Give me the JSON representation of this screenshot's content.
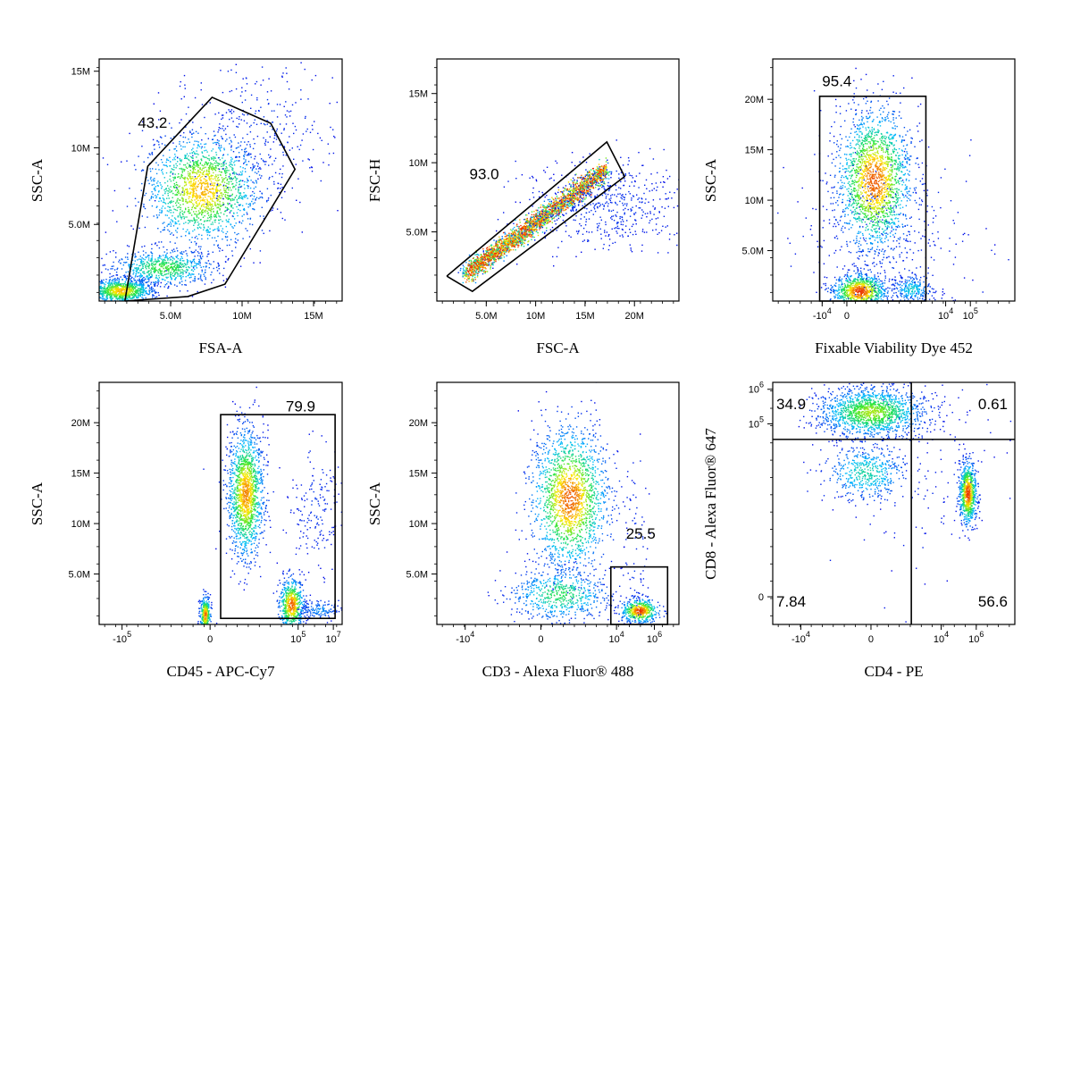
{
  "chart_data": [
    {
      "type": "scatter",
      "id": "p1",
      "xlabel": "FSA-A",
      "ylabel": "SSC-A",
      "xlim": [
        0,
        17000000
      ],
      "ylim": [
        0,
        15800000
      ],
      "xscale": "linear",
      "yscale": "linear",
      "xticks": [
        {
          "v": 5000000,
          "label": "5.0M"
        },
        {
          "v": 10000000,
          "label": "10M"
        },
        {
          "v": 15000000,
          "label": "15M"
        }
      ],
      "yticks": [
        {
          "v": 5000000,
          "label": "5.0M"
        },
        {
          "v": 10000000,
          "label": "10M"
        },
        {
          "v": 15000000,
          "label": "15M"
        }
      ],
      "clusters": [
        {
          "cx": 7200000,
          "cy": 7300000,
          "sx": 2000000,
          "sy": 1800000,
          "n": 1700,
          "peak": 0.8
        },
        {
          "cx": 4500000,
          "cy": 2200000,
          "sx": 1800000,
          "sy": 600000,
          "n": 700,
          "peak": 0.55
        },
        {
          "cx": 1500000,
          "cy": 700000,
          "sx": 1100000,
          "sy": 400000,
          "n": 900,
          "peak": 0.8
        },
        {
          "cx": 11000000,
          "cy": 11000000,
          "sx": 3000000,
          "sy": 2500000,
          "n": 350,
          "peak": 0.05
        }
      ],
      "gates": [
        {
          "kind": "polygon",
          "label": "43.2",
          "points": [
            [
              1800000,
              0
            ],
            [
              3400000,
              8800000
            ],
            [
              7900000,
              13300000
            ],
            [
              12000000,
              11600000
            ],
            [
              13700000,
              8600000
            ],
            [
              8800000,
              1100000
            ],
            [
              6200000,
              300000
            ],
            [
              1800000,
              0
            ]
          ],
          "label_at": [
            2700000,
            11300000
          ]
        }
      ]
    },
    {
      "type": "scatter",
      "id": "p2",
      "xlabel": "FSC-A",
      "ylabel": "FSC-H",
      "xlim": [
        0,
        24500000
      ],
      "ylim": [
        0,
        17500000
      ],
      "xscale": "linear",
      "yscale": "linear",
      "xticks": [
        {
          "v": 5000000,
          "label": "5.0M"
        },
        {
          "v": 10000000,
          "label": "10M"
        },
        {
          "v": 15000000,
          "label": "15M"
        },
        {
          "v": 20000000,
          "label": "20M"
        }
      ],
      "yticks": [
        {
          "v": 5000000,
          "label": "5.0M"
        },
        {
          "v": 10000000,
          "label": "10M"
        },
        {
          "v": 15000000,
          "label": "15M"
        }
      ],
      "clusters": [
        {
          "diag": true,
          "x0": 3000000,
          "y0": 2000000,
          "x1": 17000000,
          "y1": 9500000,
          "width": 700000,
          "n": 2600,
          "peak": 0.95
        },
        {
          "cx": 17000000,
          "cy": 7000000,
          "sx": 4000000,
          "sy": 1600000,
          "n": 600,
          "peak": 0.05
        }
      ],
      "gates": [
        {
          "kind": "polygon",
          "label": "93.0",
          "points": [
            [
              1000000,
              1800000
            ],
            [
              3600000,
              700000
            ],
            [
              19000000,
              9000000
            ],
            [
              17200000,
              11500000
            ],
            [
              1000000,
              1800000
            ]
          ],
          "label_at": [
            3300000,
            8800000
          ]
        }
      ]
    },
    {
      "type": "scatter",
      "id": "p3",
      "xlabel": "Fixable Viability Dye 452",
      "ylabel": "SSC-A",
      "xlim": [
        -3,
        6.8
      ],
      "ylim": [
        0,
        24000000
      ],
      "xscale": "biexp",
      "yscale": "linear",
      "xticks": [
        {
          "v": -1,
          "label": "-10^4"
        },
        {
          "v": 0,
          "label": "0"
        },
        {
          "v": 4,
          "label": "10^4"
        },
        {
          "v": 5,
          "label": "10^5"
        }
      ],
      "yticks": [
        {
          "v": 5000000,
          "label": "5.0M"
        },
        {
          "v": 10000000,
          "label": "10M"
        },
        {
          "v": 15000000,
          "label": "15M"
        },
        {
          "v": 20000000,
          "label": "20M"
        }
      ],
      "clusters": [
        {
          "cx": 1.1,
          "cy": 12000000,
          "sx": 0.75,
          "sy": 3500000,
          "n": 1900,
          "peak": 0.9
        },
        {
          "cx": 0.5,
          "cy": 1000000,
          "sx": 0.55,
          "sy": 900000,
          "n": 900,
          "peak": 0.95
        },
        {
          "cx": 2.6,
          "cy": 1200000,
          "sx": 0.4,
          "sy": 700000,
          "n": 250,
          "peak": 0.35
        },
        {
          "cx": 1.5,
          "cy": 6000000,
          "sx": 1.8,
          "sy": 5000000,
          "n": 400,
          "peak": 0.05
        }
      ],
      "gates": [
        {
          "kind": "rect",
          "label": "95.4",
          "x": [
            -1.1,
            3.2
          ],
          "y": [
            0,
            20300000
          ],
          "label_at": [
            -1.0,
            21300000
          ]
        }
      ]
    },
    {
      "type": "scatter",
      "id": "p4",
      "xlabel": "CD45 - APC-Cy7",
      "ylabel": "SSC-A",
      "xlim": [
        -6.3,
        7.5
      ],
      "ylim": [
        0,
        24000000
      ],
      "xscale": "biexp",
      "yscale": "linear",
      "xticks": [
        {
          "v": -5,
          "label": "-10^5"
        },
        {
          "v": 0,
          "label": "0"
        },
        {
          "v": 5,
          "label": "10^5"
        },
        {
          "v": 7,
          "label": "10^7"
        }
      ],
      "yticks": [
        {
          "v": 5000000,
          "label": "5.0M"
        },
        {
          "v": 10000000,
          "label": "10M"
        },
        {
          "v": 15000000,
          "label": "15M"
        },
        {
          "v": 20000000,
          "label": "20M"
        }
      ],
      "clusters": [
        {
          "cx": 2.0,
          "cy": 13000000,
          "sx": 0.5,
          "sy": 3200000,
          "n": 1500,
          "peak": 0.85
        },
        {
          "cx": 4.6,
          "cy": 2000000,
          "sx": 0.35,
          "sy": 1300000,
          "n": 600,
          "peak": 0.9
        },
        {
          "cx": -0.3,
          "cy": 1000000,
          "sx": 0.15,
          "sy": 900000,
          "n": 350,
          "peak": 0.9
        },
        {
          "cx": 6.0,
          "cy": 11500000,
          "sx": 0.8,
          "sy": 3000000,
          "n": 180,
          "peak": 0.05
        },
        {
          "cx": 6.2,
          "cy": 1500000,
          "sx": 0.6,
          "sy": 500000,
          "n": 150,
          "peak": 0.2
        }
      ],
      "gates": [
        {
          "kind": "rect",
          "label": "79.9",
          "x": [
            0.6,
            7.1
          ],
          "y": [
            600000,
            20800000
          ],
          "label_at": [
            4.3,
            21100000
          ]
        }
      ]
    },
    {
      "type": "scatter",
      "id": "p5",
      "xlabel": "CD3 - Alexa Fluor® 488",
      "ylabel": "SSC-A",
      "xlim": [
        -5.5,
        7.3
      ],
      "ylim": [
        0,
        24000000
      ],
      "xscale": "biexp",
      "yscale": "linear",
      "xticks": [
        {
          "v": -4,
          "label": "-10^4"
        },
        {
          "v": 0,
          "label": "0"
        },
        {
          "v": 4,
          "label": "10^4"
        },
        {
          "v": 6,
          "label": "10^6"
        }
      ],
      "yticks": [
        {
          "v": 5000000,
          "label": "5.0M"
        },
        {
          "v": 10000000,
          "label": "10M"
        },
        {
          "v": 15000000,
          "label": "15M"
        },
        {
          "v": 20000000,
          "label": "20M"
        }
      ],
      "clusters": [
        {
          "cx": 1.5,
          "cy": 12500000,
          "sx": 1.0,
          "sy": 3500000,
          "n": 1800,
          "peak": 0.9
        },
        {
          "cx": 1.0,
          "cy": 3000000,
          "sx": 1.3,
          "sy": 1300000,
          "n": 600,
          "peak": 0.5
        },
        {
          "cx": 5.2,
          "cy": 1400000,
          "sx": 0.5,
          "sy": 600000,
          "n": 500,
          "peak": 0.95
        },
        {
          "cx": 5.0,
          "cy": 7000000,
          "sx": 0.35,
          "sy": 5000000,
          "n": 80,
          "peak": 0.05
        }
      ],
      "gates": [
        {
          "kind": "rect",
          "label": "25.5",
          "x": [
            3.7,
            6.7
          ],
          "y": [
            0,
            5700000
          ],
          "label_at": [
            4.5,
            8500000
          ]
        }
      ]
    },
    {
      "type": "scatter",
      "id": "p6",
      "xlabel": "CD4 - PE",
      "ylabel": "CD8 - Alexa Fluor® 647",
      "xlim": [
        -5.6,
        8.2
      ],
      "ylim": [
        -0.8,
        6.2
      ],
      "xscale": "biexp",
      "yscale": "biexp",
      "xticks": [
        {
          "v": -4,
          "label": "-10^4"
        },
        {
          "v": 0,
          "label": "0"
        },
        {
          "v": 4,
          "label": "10^4"
        },
        {
          "v": 6,
          "label": "10^6"
        }
      ],
      "yticks": [
        {
          "v": 0,
          "label": "0"
        },
        {
          "v": 5,
          "label": "10^5"
        },
        {
          "v": 6,
          "label": "10^6"
        }
      ],
      "clusters": [
        {
          "cx": 0.0,
          "cy": 5.35,
          "sx": 1.5,
          "sy": 0.35,
          "n": 1500,
          "peak": 0.65
        },
        {
          "cx": -0.3,
          "cy": 3.6,
          "sx": 1.2,
          "sy": 0.4,
          "n": 500,
          "peak": 0.4
        },
        {
          "cx": 5.5,
          "cy": 3.0,
          "sx": 0.25,
          "sy": 0.45,
          "n": 800,
          "peak": 0.95
        },
        {
          "cx": 3.0,
          "cy": 3.5,
          "sx": 2.5,
          "sy": 1.5,
          "n": 120,
          "peak": 0.02
        }
      ],
      "gates": [
        {
          "kind": "quad",
          "x": 2.3,
          "y": 4.55,
          "labels": [
            "34.9",
            "0.61",
            "7.84",
            "56.6"
          ]
        }
      ]
    }
  ]
}
